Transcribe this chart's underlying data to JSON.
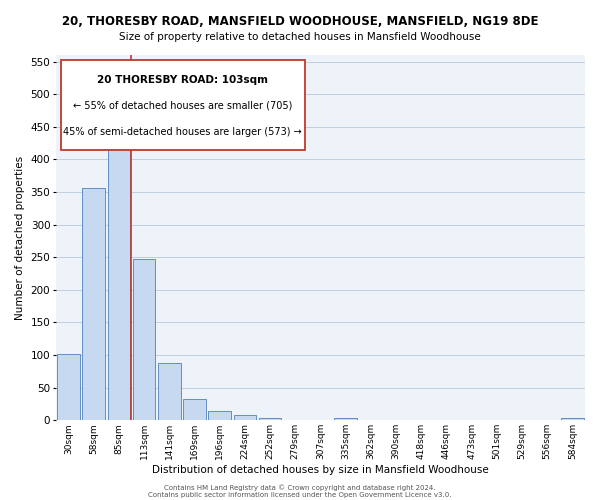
{
  "title": "20, THORESBY ROAD, MANSFIELD WOODHOUSE, MANSFIELD, NG19 8DE",
  "subtitle": "Size of property relative to detached houses in Mansfield Woodhouse",
  "xlabel": "Distribution of detached houses by size in Mansfield Woodhouse",
  "ylabel": "Number of detached properties",
  "bar_labels": [
    "30sqm",
    "58sqm",
    "85sqm",
    "113sqm",
    "141sqm",
    "169sqm",
    "196sqm",
    "224sqm",
    "252sqm",
    "279sqm",
    "307sqm",
    "335sqm",
    "362sqm",
    "390sqm",
    "418sqm",
    "446sqm",
    "473sqm",
    "501sqm",
    "529sqm",
    "556sqm",
    "584sqm"
  ],
  "bar_values": [
    102,
    356,
    446,
    248,
    88,
    33,
    15,
    8,
    4,
    0,
    0,
    4,
    0,
    0,
    0,
    0,
    0,
    0,
    0,
    0,
    3
  ],
  "bar_color": "#c6d9f0",
  "bar_edge_color": "#4f81bd",
  "grid_color": "#c0cfe0",
  "bg_color": "#eef2f9",
  "vline_x": 2.5,
  "vline_color": "#c0392b",
  "annotation_title": "20 THORESBY ROAD: 103sqm",
  "annotation_line1": "← 55% of detached houses are smaller (705)",
  "annotation_line2": "45% of semi-detached houses are larger (573) →",
  "annotation_box_color": "#c0392b",
  "ylim": [
    0,
    560
  ],
  "yticks": [
    0,
    50,
    100,
    150,
    200,
    250,
    300,
    350,
    400,
    450,
    500,
    550
  ],
  "footer1": "Contains HM Land Registry data © Crown copyright and database right 2024.",
  "footer2": "Contains public sector information licensed under the Open Government Licence v3.0."
}
